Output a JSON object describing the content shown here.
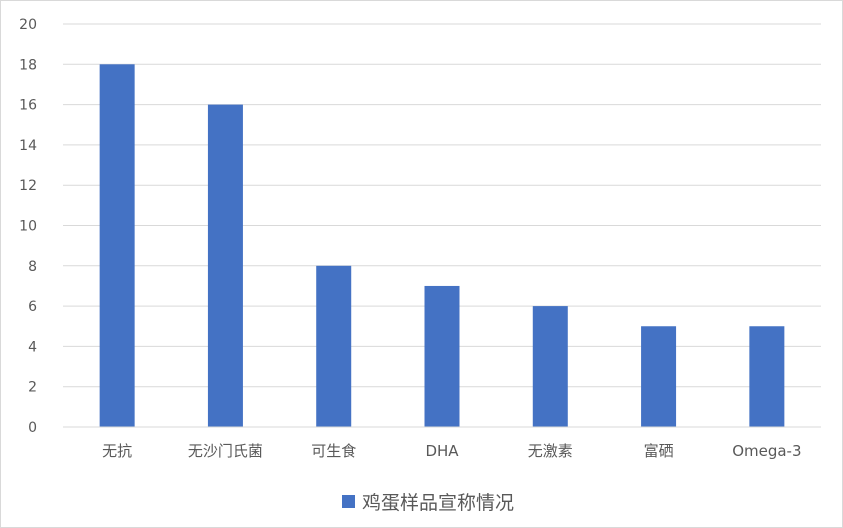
{
  "chart_data": {
    "type": "bar",
    "title": "",
    "xlabel": "",
    "ylabel": "",
    "categories": [
      "无抗",
      "无沙门氏菌",
      "可生食",
      "DHA",
      "无激素",
      "富硒",
      "Omega-3"
    ],
    "series": [
      {
        "name": "鸡蛋样品宣称情况",
        "values": [
          18,
          16,
          8,
          7,
          6,
          5,
          5
        ],
        "color": "#4472C4"
      }
    ],
    "ylim": [
      0,
      20
    ],
    "yticks": [
      0,
      2,
      4,
      6,
      8,
      10,
      12,
      14,
      16,
      18,
      20
    ],
    "grid": true,
    "legend": "bottom",
    "gridline_color": "#d9d9d9",
    "text_color": "#595959"
  }
}
